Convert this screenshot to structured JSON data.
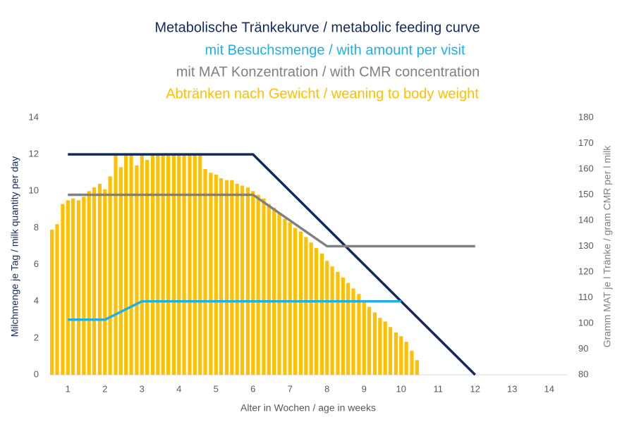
{
  "chart_data": {
    "type": "combo",
    "titles": [
      "Metabolische Tränkekurve / metabolic feeding curve",
      "mit Besuchsmenge / with amount per visit",
      "mit MAT Konzentration / with CMR concentration",
      "Abtränken nach Gewicht / weaning to body weight"
    ],
    "x_label": "Alter in Wochen / age in weeks",
    "y_label": "Milchmenge je Tag / milk quantity per day",
    "y2_label": "Gramm MAT je l Tränke / gram CMR per l milk",
    "xlim": [
      0.5,
      14.5
    ],
    "xticks": [
      1,
      2,
      3,
      4,
      5,
      6,
      7,
      8,
      9,
      10,
      11,
      12,
      13,
      14
    ],
    "ylim": [
      0,
      14
    ],
    "yticks": [
      0,
      2,
      4,
      6,
      8,
      10,
      12,
      14
    ],
    "y2lim": [
      80,
      180
    ],
    "y2ticks": [
      80,
      90,
      100,
      110,
      120,
      130,
      140,
      150,
      160,
      170,
      180
    ],
    "series": [
      {
        "type": "line",
        "color": "#132a5e",
        "x": [
          1,
          6,
          12
        ],
        "values": [
          12,
          12,
          0
        ]
      },
      {
        "type": "line",
        "color": "#1fb0e8",
        "x": [
          1,
          2,
          3,
          10
        ],
        "values": [
          3,
          3,
          4,
          4
        ]
      },
      {
        "type": "line",
        "color": "#808080",
        "axis": "y2",
        "x": [
          1,
          6,
          8,
          12
        ],
        "values": [
          150,
          150,
          130,
          130
        ]
      },
      {
        "type": "bar",
        "color": "#ffc000",
        "x": [
          0.57,
          0.71,
          0.86,
          1.0,
          1.14,
          1.29,
          1.43,
          1.57,
          1.71,
          1.86,
          2.0,
          2.14,
          2.29,
          2.43,
          2.57,
          2.71,
          2.86,
          3.0,
          3.14,
          3.29,
          3.43,
          3.57,
          3.71,
          3.86,
          4.0,
          4.14,
          4.29,
          4.43,
          4.57,
          4.71,
          4.86,
          5.0,
          5.14,
          5.29,
          5.43,
          5.57,
          5.71,
          5.86,
          6.0,
          6.14,
          6.29,
          6.43,
          6.57,
          6.71,
          6.86,
          7.0,
          7.14,
          7.29,
          7.43,
          7.57,
          7.71,
          7.86,
          8.0,
          8.14,
          8.29,
          8.43,
          8.57,
          8.71,
          8.86,
          9.0,
          9.14,
          9.29,
          9.43,
          9.57,
          9.71,
          9.86,
          10.0,
          10.14,
          10.29,
          10.43
        ],
        "values": [
          7.9,
          8.2,
          9.3,
          9.5,
          9.6,
          9.5,
          9.7,
          10.0,
          10.2,
          10.4,
          10.1,
          10.8,
          12.0,
          11.3,
          12.0,
          12.0,
          11.4,
          12.0,
          11.7,
          12.0,
          12.0,
          12.0,
          12.0,
          12.0,
          12.0,
          12.0,
          12.0,
          12.0,
          12.0,
          11.2,
          11.0,
          10.9,
          10.7,
          10.6,
          10.6,
          10.4,
          10.3,
          10.2,
          10.0,
          9.8,
          9.6,
          9.3,
          9.1,
          8.8,
          8.5,
          8.3,
          8.0,
          7.8,
          7.5,
          7.2,
          6.9,
          6.6,
          6.2,
          5.9,
          5.6,
          5.3,
          5.0,
          4.7,
          4.4,
          4.0,
          3.7,
          3.4,
          3.1,
          2.9,
          2.6,
          2.3,
          2.1,
          1.8,
          1.3,
          0.8
        ]
      }
    ]
  }
}
